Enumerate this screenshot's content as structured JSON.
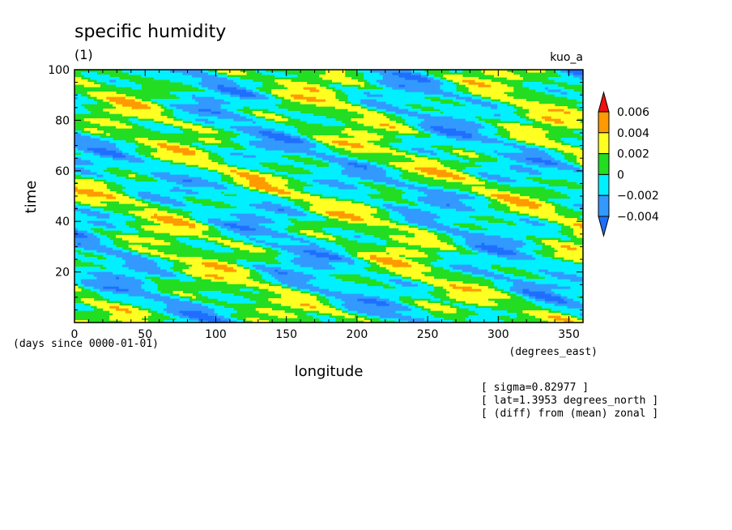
{
  "chart_data": {
    "type": "heatmap",
    "title": "specific humidity",
    "subtitle": "(1)",
    "experiment": "kuo_a",
    "xlabel": "longitude",
    "x_units": "(degrees_east)",
    "ylabel": "time",
    "y_units": "(days since 0000-01-01)",
    "xlim": [
      0,
      360
    ],
    "ylim": [
      0,
      100
    ],
    "x_ticks": [
      0,
      50,
      100,
      150,
      200,
      250,
      300,
      350
    ],
    "y_ticks": [
      20,
      40,
      60,
      80,
      100
    ],
    "colorbar": {
      "levels": [
        -0.004,
        -0.002,
        0,
        0.002,
        0.004,
        0.006
      ],
      "labels": [
        "-0.004",
        "-0.002",
        "0",
        "0.002",
        "0.004",
        "0.006"
      ],
      "colors": [
        "#1f6fff",
        "#3399ff",
        "#00f0ff",
        "#22dd22",
        "#ffff22",
        "#ff9a00",
        "#ee1111"
      ],
      "extend": "both"
    },
    "field_description": "westward-propagating diagonal bands, zonal anomaly from mean",
    "annotations": [
      "[ sigma=0.82977 ]",
      "[ lat=1.3953 degrees_north ]",
      "[ (diff) from (mean) zonal ]"
    ]
  }
}
